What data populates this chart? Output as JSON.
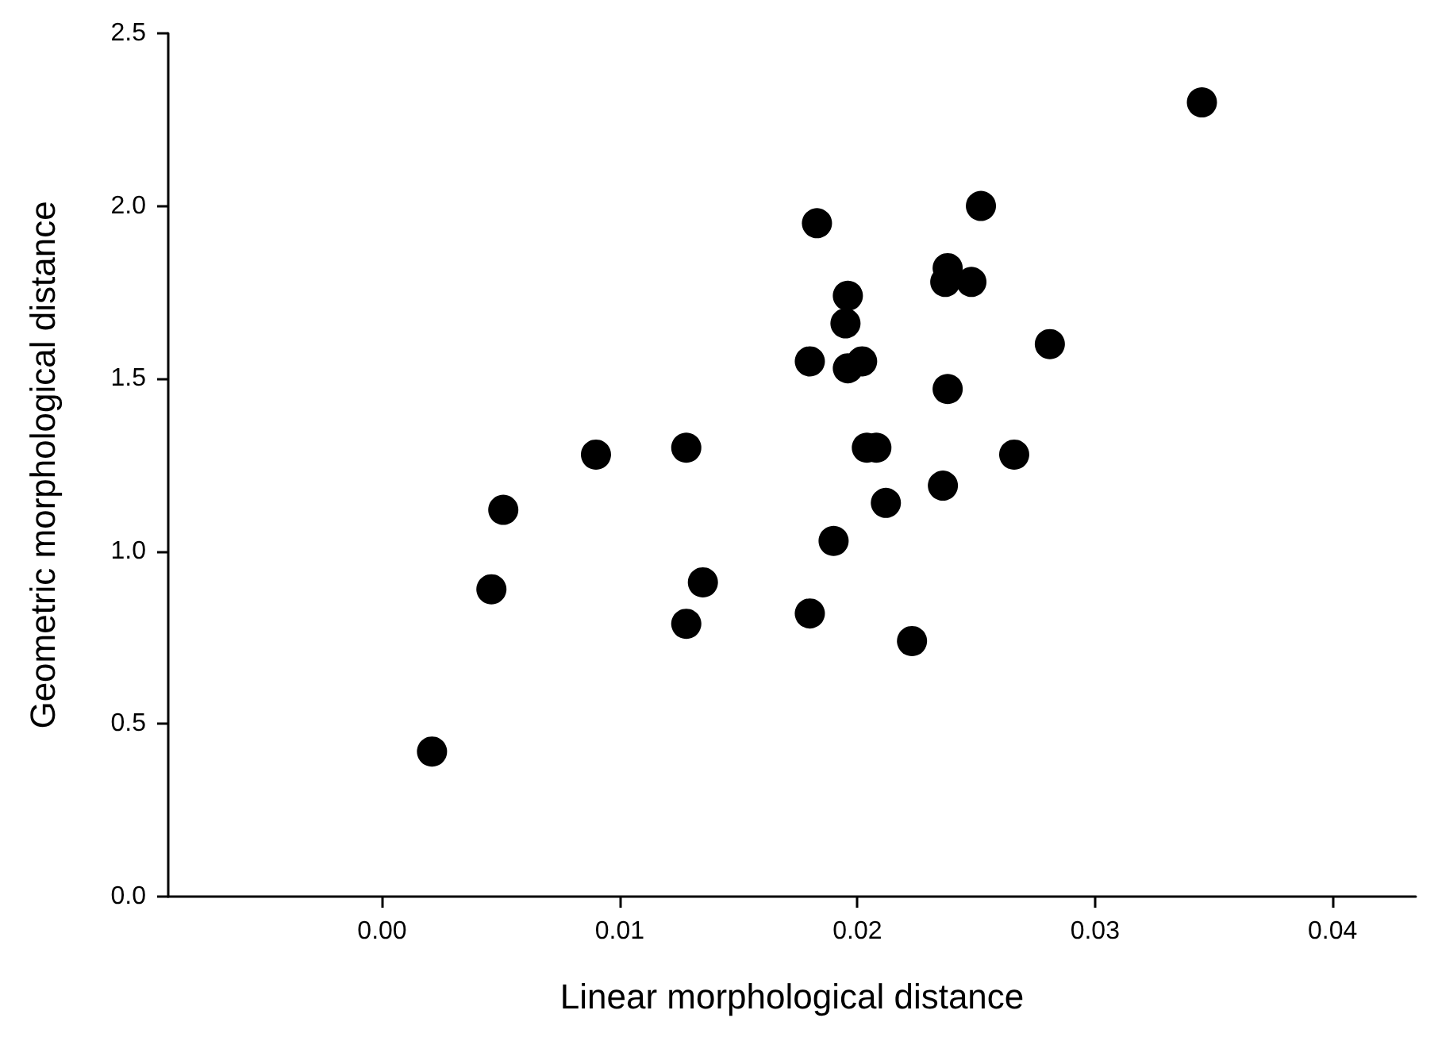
{
  "chart_data": {
    "type": "scatter",
    "xlabel": "Linear morphological distance",
    "ylabel": "Geometric morphological distance",
    "x": [
      0.0021,
      0.0046,
      0.0051,
      0.009,
      0.0128,
      0.0135,
      0.0128,
      0.018,
      0.019,
      0.018,
      0.0183,
      0.0196,
      0.0195,
      0.0196,
      0.0202,
      0.0204,
      0.0208,
      0.0212,
      0.0223,
      0.0236,
      0.0238,
      0.0238,
      0.0237,
      0.0248,
      0.0252,
      0.0266,
      0.0281,
      0.0345
    ],
    "values": [
      0.42,
      0.89,
      1.12,
      1.28,
      1.3,
      0.91,
      0.79,
      0.82,
      1.03,
      1.55,
      1.95,
      1.74,
      1.66,
      1.53,
      1.55,
      1.3,
      1.3,
      1.14,
      0.74,
      1.19,
      1.47,
      1.82,
      1.78,
      1.78,
      2.0,
      1.28,
      1.6,
      2.3
    ],
    "color": "#000000",
    "marker": "circle",
    "xlim": [
      -0.009,
      0.0435
    ],
    "xticks": [
      {
        "value": 0,
        "label": "0.00"
      },
      {
        "value": 0.01,
        "label": "0.01"
      },
      {
        "value": 0.02,
        "label": "0.02"
      },
      {
        "value": 0.03,
        "label": "0.03"
      },
      {
        "value": 0.04,
        "label": "0.04"
      }
    ],
    "ylim": [
      0,
      2.5
    ],
    "yticks": [
      {
        "value": 0,
        "label": "0.0"
      },
      {
        "value": 0.5,
        "label": "0.5"
      },
      {
        "value": 1,
        "label": "1.0"
      },
      {
        "value": 1.5,
        "label": "1.5"
      },
      {
        "value": 2,
        "label": "2.0"
      },
      {
        "value": 2.5,
        "label": "2.5"
      }
    ],
    "grid": false
  }
}
